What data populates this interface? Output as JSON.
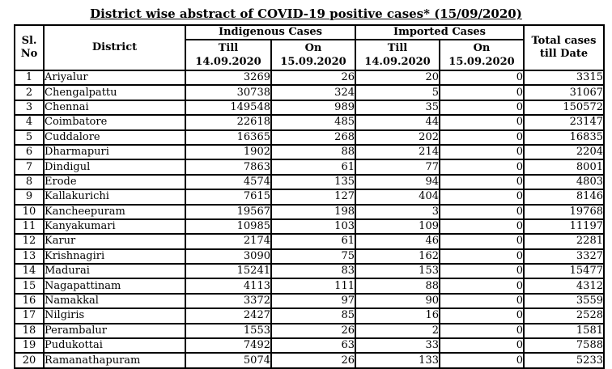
{
  "title": "District wise abstract of COVID-19 positive cases* (15/09/2020)",
  "table": {
    "headers": {
      "sl_no": "Sl.\nNo",
      "district": "District",
      "indigenous_group": "Indigenous Cases",
      "imported_group": "Imported Cases",
      "till_col": "Till\n14.09.2020",
      "on_col": "On\n15.09.2020",
      "total": "Total cases\ntill Date"
    },
    "rows": [
      [
        1,
        "Ariyalur",
        3269,
        26,
        20,
        0,
        3315
      ],
      [
        2,
        "Chengalpattu",
        30738,
        324,
        5,
        0,
        31067
      ],
      [
        3,
        "Chennai",
        149548,
        989,
        35,
        0,
        150572
      ],
      [
        4,
        "Coimbatore",
        22618,
        485,
        44,
        0,
        23147
      ],
      [
        5,
        "Cuddalore",
        16365,
        268,
        202,
        0,
        16835
      ],
      [
        6,
        "Dharmapuri",
        1902,
        88,
        214,
        0,
        2204
      ],
      [
        7,
        "Dindigul",
        7863,
        61,
        77,
        0,
        8001
      ],
      [
        8,
        "Erode",
        4574,
        135,
        94,
        0,
        4803
      ],
      [
        9,
        "Kallakurichi",
        7615,
        127,
        404,
        0,
        8146
      ],
      [
        10,
        "Kancheepuram",
        19567,
        198,
        3,
        0,
        19768
      ],
      [
        11,
        "Kanyakumari",
        10985,
        103,
        109,
        0,
        11197
      ],
      [
        12,
        "Karur",
        2174,
        61,
        46,
        0,
        2281
      ],
      [
        13,
        "Krishnagiri",
        3090,
        75,
        162,
        0,
        3327
      ],
      [
        14,
        "Madurai",
        15241,
        83,
        153,
        0,
        15477
      ],
      [
        15,
        "Nagapattinam",
        4113,
        111,
        88,
        0,
        4312
      ],
      [
        16,
        "Namakkal",
        3372,
        97,
        90,
        0,
        3559
      ],
      [
        17,
        "Nilgiris",
        2427,
        85,
        16,
        0,
        2528
      ],
      [
        18,
        "Perambalur",
        1553,
        26,
        2,
        0,
        1581
      ],
      [
        19,
        "Pudukottai",
        7492,
        63,
        33,
        0,
        7588
      ],
      [
        20,
        "Ramanathapuram",
        5074,
        26,
        133,
        0,
        5233
      ]
    ]
  }
}
